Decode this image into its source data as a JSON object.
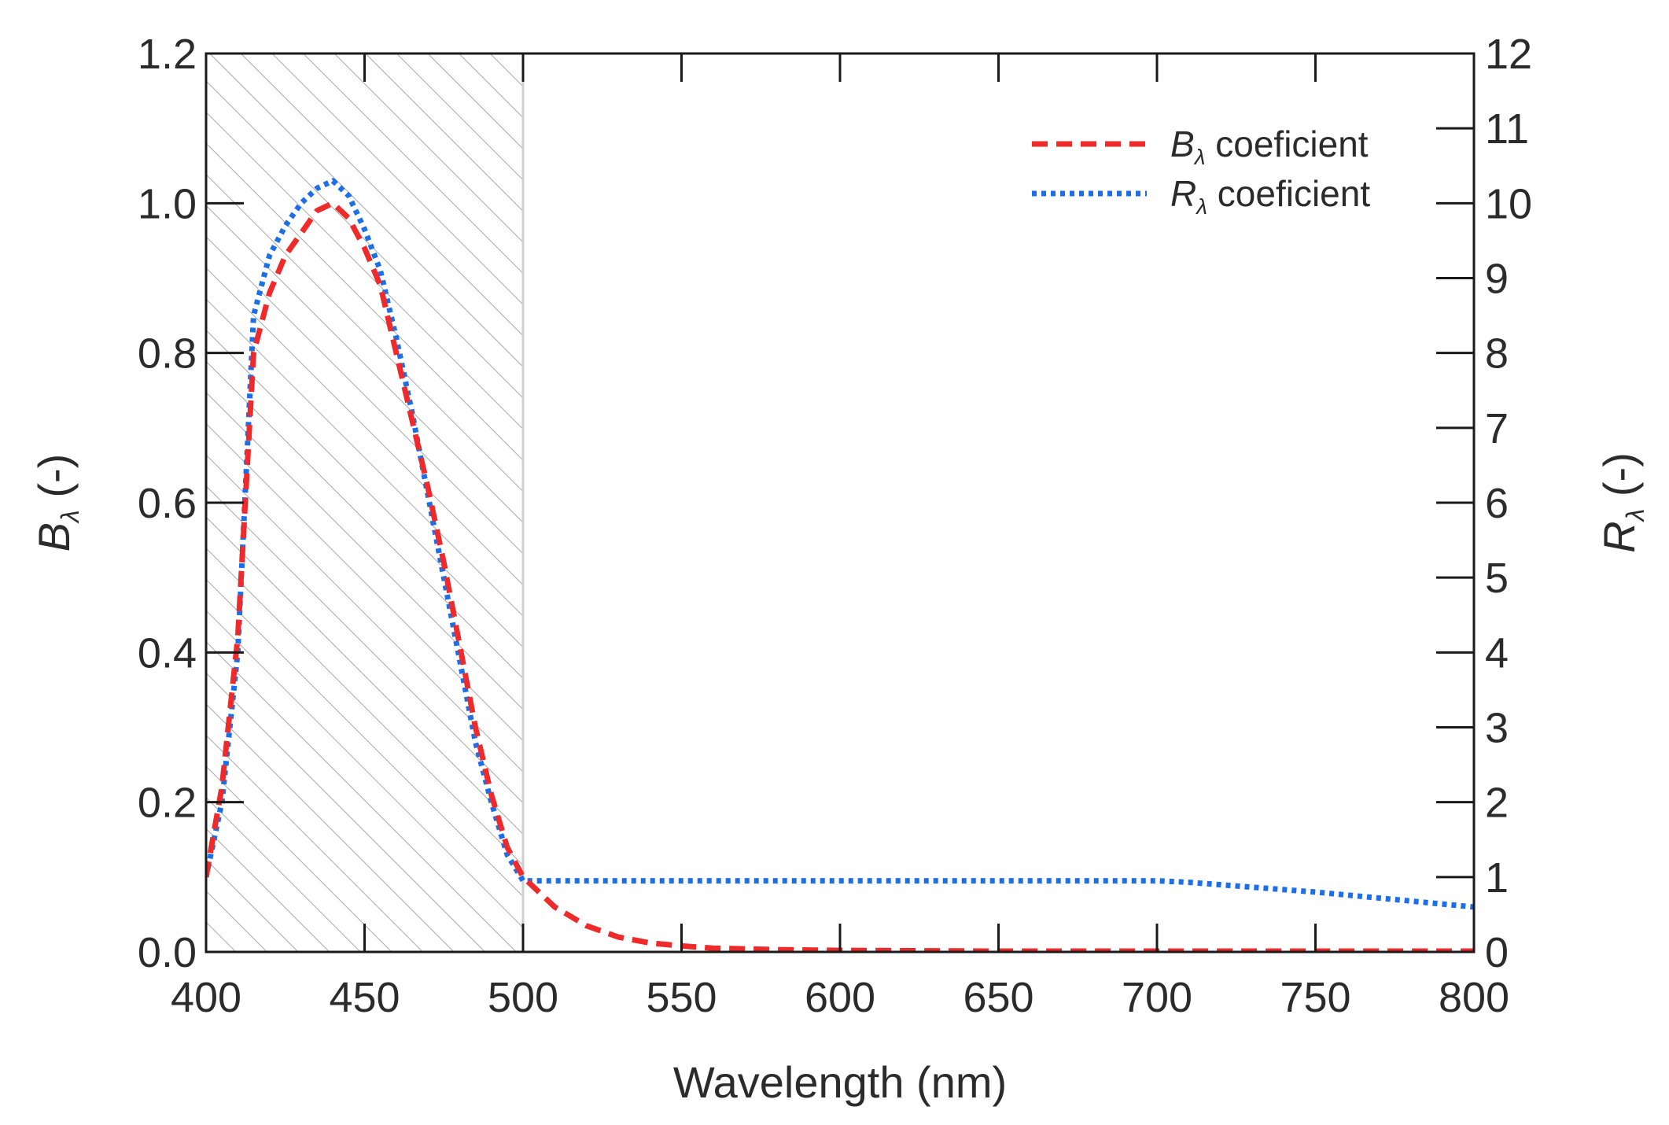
{
  "chart_data": {
    "type": "line",
    "xlabel": "Wavelength (nm)",
    "ylabel_left": {
      "symbol": "B",
      "sub": "λ",
      "rest": " (-)"
    },
    "ylabel_right": {
      "symbol": "R",
      "sub": "λ",
      "rest": " (-)"
    },
    "xlim": [
      400,
      800
    ],
    "ylim_left": [
      0,
      1.2
    ],
    "ylim_right": [
      0,
      12
    ],
    "x_ticks": [
      400,
      450,
      500,
      550,
      600,
      650,
      700,
      750,
      800
    ],
    "x_tick_labels": [
      "400",
      "450",
      "500",
      "550",
      "600",
      "650",
      "700",
      "750",
      "800"
    ],
    "y_left_ticks": [
      0,
      0.2,
      0.4,
      0.6,
      0.8,
      1.0,
      1.2
    ],
    "y_left_tick_labels": [
      "0.0",
      "0.2",
      "0.4",
      "0.6",
      "0.8",
      "1.0",
      "1.2"
    ],
    "y_right_ticks": [
      0,
      1,
      2,
      3,
      4,
      5,
      6,
      7,
      8,
      9,
      10,
      11,
      12
    ],
    "y_right_tick_labels": [
      "0",
      "1",
      "2",
      "3",
      "4",
      "5",
      "6",
      "7",
      "8",
      "9",
      "10",
      "11",
      "12"
    ],
    "shaded_region": {
      "x_range": [
        400,
        500
      ],
      "pattern": "diagonal-hatch"
    },
    "series": [
      {
        "name": "B_λ coeficient",
        "legend": {
          "symbol": "B",
          "sub": "λ",
          "rest": " coeficient"
        },
        "axis": "left",
        "style": "dashed",
        "color": "#ee2a2a",
        "x": [
          400,
          405,
          410,
          415,
          420,
          425,
          430,
          435,
          440,
          445,
          450,
          455,
          460,
          465,
          470,
          475,
          480,
          485,
          490,
          495,
          500,
          510,
          520,
          530,
          540,
          550,
          560,
          580,
          600,
          650,
          700,
          750,
          800
        ],
        "y": [
          0.1,
          0.22,
          0.42,
          0.8,
          0.88,
          0.93,
          0.96,
          0.99,
          1.0,
          0.98,
          0.94,
          0.89,
          0.8,
          0.71,
          0.62,
          0.52,
          0.41,
          0.3,
          0.21,
          0.14,
          0.1,
          0.06,
          0.035,
          0.02,
          0.012,
          0.008,
          0.005,
          0.003,
          0.002,
          0.001,
          0.001,
          0.001,
          0.001
        ]
      },
      {
        "name": "R_λ coeficient",
        "legend": {
          "symbol": "R",
          "sub": "λ",
          "rest": " coeficient"
        },
        "axis": "right",
        "style": "dotted",
        "color": "#1c6fe8",
        "x": [
          400,
          405,
          410,
          415,
          420,
          425,
          430,
          435,
          440,
          445,
          450,
          455,
          460,
          465,
          470,
          475,
          480,
          485,
          490,
          495,
          500,
          550,
          600,
          650,
          700,
          710,
          750,
          800
        ],
        "y": [
          1.0,
          2.0,
          4.0,
          8.5,
          9.3,
          9.7,
          10.0,
          10.2,
          10.3,
          10.1,
          9.65,
          9.1,
          8.2,
          7.2,
          6.1,
          5.0,
          3.9,
          2.8,
          2.0,
          1.3,
          0.95,
          0.95,
          0.95,
          0.95,
          0.95,
          0.93,
          0.8,
          0.6
        ]
      }
    ]
  }
}
